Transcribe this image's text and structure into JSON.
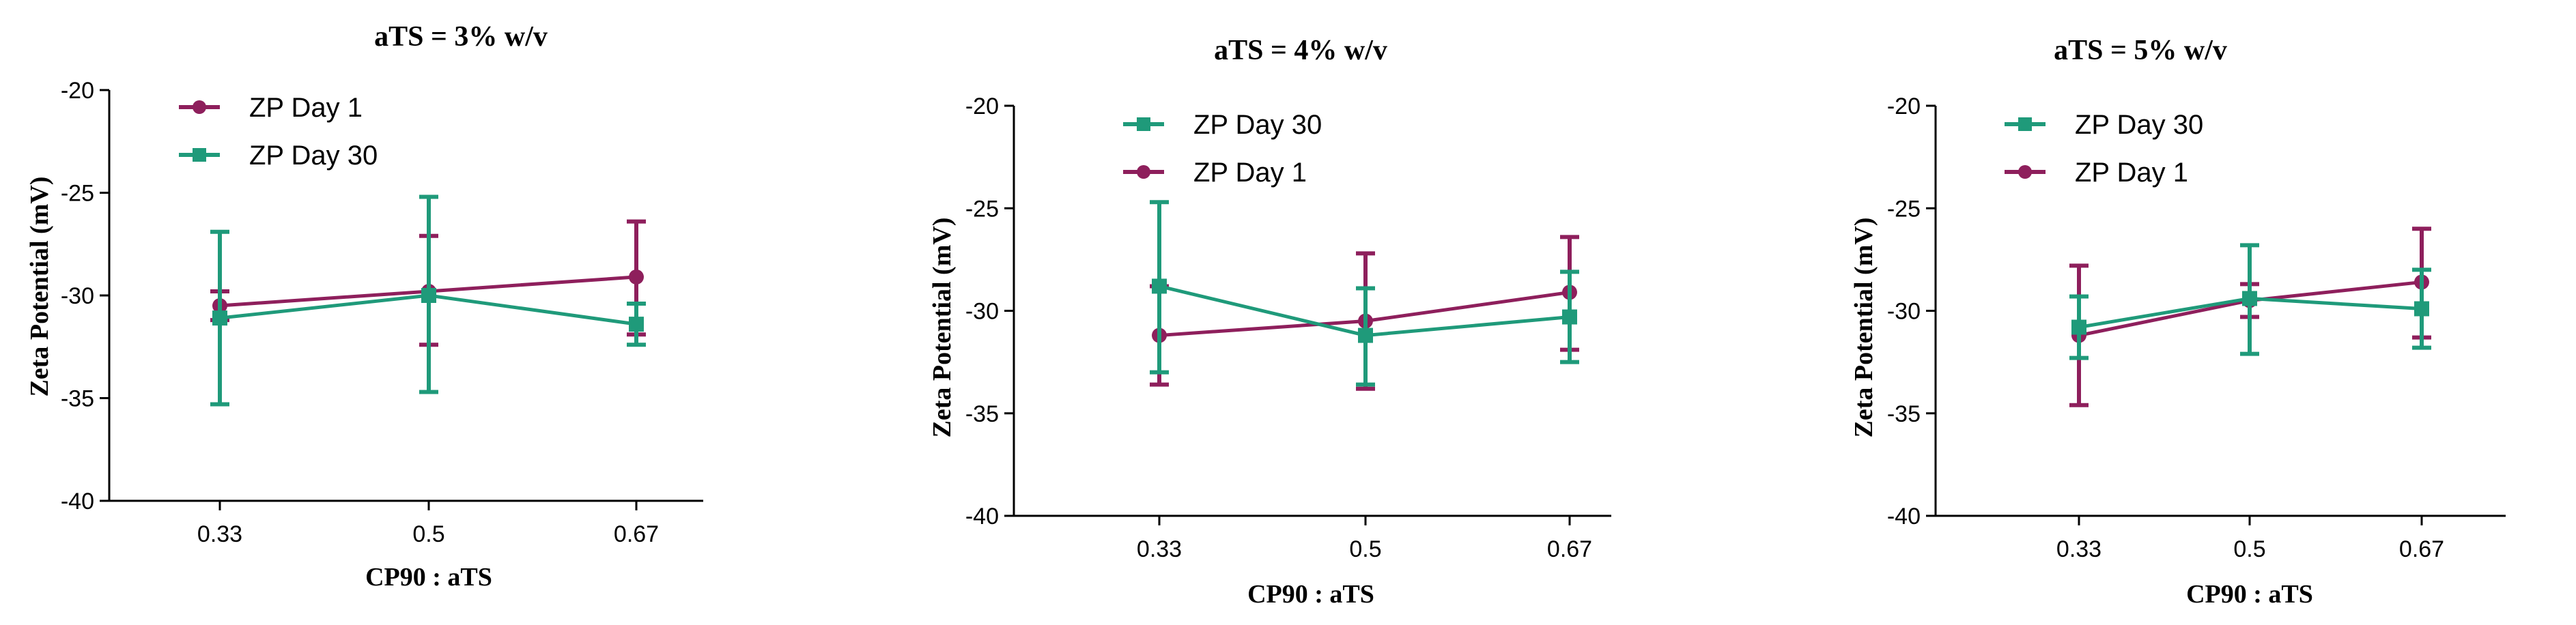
{
  "colors": {
    "day1": "#8e1f5c",
    "day30": "#1f9a7a"
  },
  "chart_data": [
    {
      "type": "line",
      "title": "aTS = 3% w/v",
      "xlabel": "CP90 : aTS",
      "ylabel": "Zeta Potential (mV)",
      "categories": [
        "0.33",
        "0.5",
        "0.67"
      ],
      "ylim": [
        -40,
        -20
      ],
      "yticks": [
        "-20",
        "-25",
        "-30",
        "-35",
        "-40"
      ],
      "legend_order": [
        "day1",
        "day30"
      ],
      "series": [
        {
          "key": "day1",
          "name": "ZP Day 1",
          "marker": "circle",
          "values": [
            -30.5,
            -29.8,
            -29.1
          ],
          "err_low": [
            -31.2,
            -32.4,
            -31.9
          ],
          "err_high": [
            -29.8,
            -27.1,
            -26.4
          ]
        },
        {
          "key": "day30",
          "name": "ZP Day 30",
          "marker": "square",
          "values": [
            -31.1,
            -30.0,
            -31.4
          ],
          "err_low": [
            -35.3,
            -34.7,
            -32.4
          ],
          "err_high": [
            -26.9,
            -25.2,
            -30.4
          ]
        }
      ]
    },
    {
      "type": "line",
      "title": "aTS = 4% w/v",
      "xlabel": "CP90 : aTS",
      "ylabel": "Zeta Potential (mV)",
      "categories": [
        "0.33",
        "0.5",
        "0.67"
      ],
      "ylim": [
        -40,
        -20
      ],
      "yticks": [
        "-20",
        "-25",
        "-30",
        "-35",
        "-40"
      ],
      "legend_order": [
        "day30",
        "day1"
      ],
      "series": [
        {
          "key": "day1",
          "name": "ZP Day 1",
          "marker": "circle",
          "values": [
            -31.2,
            -30.5,
            -29.1
          ],
          "err_low": [
            -33.6,
            -33.8,
            -31.9
          ],
          "err_high": [
            -28.8,
            -27.2,
            -26.4
          ]
        },
        {
          "key": "day30",
          "name": "ZP Day 30",
          "marker": "square",
          "values": [
            -28.8,
            -31.2,
            -30.3
          ],
          "err_low": [
            -33.0,
            -33.6,
            -32.5
          ],
          "err_high": [
            -24.7,
            -28.9,
            -28.1
          ]
        }
      ]
    },
    {
      "type": "line",
      "title": "aTS = 5% w/v",
      "xlabel": "CP90 : aTS",
      "ylabel": "Zeta Potential (mV)",
      "categories": [
        "0.33",
        "0.5",
        "0.67"
      ],
      "ylim": [
        -40,
        -20
      ],
      "yticks": [
        "-20",
        "-25",
        "-30",
        "-35",
        "-40"
      ],
      "legend_order": [
        "day30",
        "day1"
      ],
      "series": [
        {
          "key": "day1",
          "name": "ZP Day 1",
          "marker": "circle",
          "values": [
            -31.2,
            -29.5,
            -28.6
          ],
          "err_low": [
            -34.6,
            -30.3,
            -31.3
          ],
          "err_high": [
            -27.8,
            -28.7,
            -26.0
          ]
        },
        {
          "key": "day30",
          "name": "ZP Day 30",
          "marker": "square",
          "values": [
            -30.8,
            -29.4,
            -29.9
          ],
          "err_low": [
            -32.3,
            -32.1,
            -31.8
          ],
          "err_high": [
            -29.3,
            -26.8,
            -28.0
          ]
        }
      ]
    }
  ]
}
